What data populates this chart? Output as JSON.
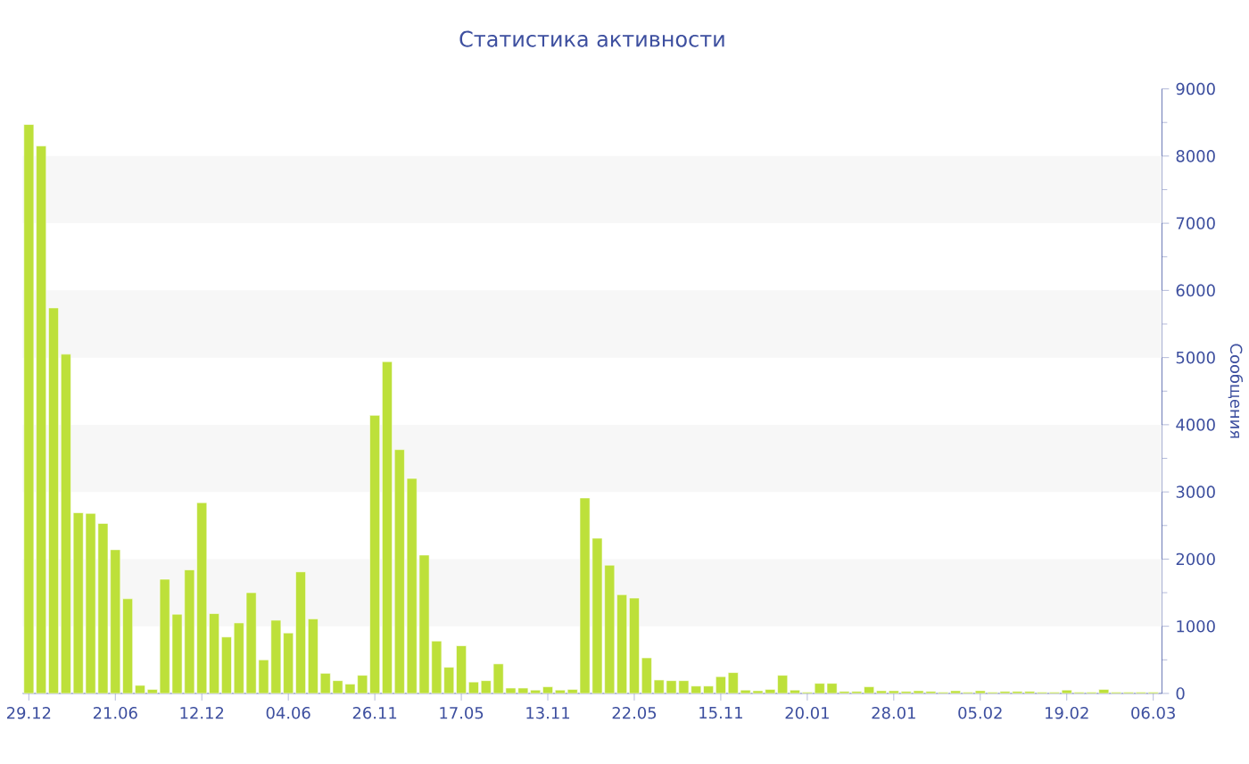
{
  "chart_data": {
    "type": "bar",
    "title": "Статистика активности",
    "ylabel": "Сообщения",
    "color": "#bde03a",
    "categories": [
      "29.12",
      null,
      null,
      null,
      null,
      null,
      null,
      "21.06",
      null,
      null,
      null,
      null,
      null,
      null,
      "12.12",
      null,
      null,
      null,
      null,
      null,
      null,
      "04.06",
      null,
      null,
      null,
      null,
      null,
      null,
      "26.11",
      null,
      null,
      null,
      null,
      null,
      null,
      "17.05",
      null,
      null,
      null,
      null,
      null,
      null,
      "13.11",
      null,
      null,
      null,
      null,
      null,
      null,
      "22.05",
      null,
      null,
      null,
      null,
      null,
      null,
      "15.11",
      null,
      null,
      null,
      null,
      null,
      null,
      "20.01",
      null,
      null,
      null,
      null,
      null,
      null,
      "28.01",
      null,
      null,
      null,
      null,
      null,
      null,
      "05.02",
      null,
      null,
      null,
      null,
      null,
      null,
      "19.02",
      null,
      null,
      null,
      null,
      null,
      null,
      "06.03"
    ],
    "values": [
      8470,
      8150,
      5740,
      5050,
      2690,
      2680,
      2530,
      2140,
      1410,
      120,
      60,
      1700,
      1180,
      1840,
      2840,
      1190,
      840,
      1050,
      1500,
      500,
      1090,
      900,
      1810,
      1110,
      300,
      190,
      140,
      270,
      4140,
      4940,
      3630,
      3200,
      2060,
      780,
      390,
      710,
      170,
      190,
      440,
      80,
      80,
      50,
      100,
      50,
      60,
      2910,
      2310,
      1910,
      1470,
      1420,
      530,
      200,
      190,
      190,
      110,
      110,
      250,
      310,
      50,
      40,
      60,
      270,
      50,
      20,
      150,
      150,
      30,
      30,
      100,
      40,
      40,
      30,
      40,
      30,
      20,
      40,
      20,
      40,
      20,
      30,
      30,
      30,
      20,
      20,
      50,
      20,
      20,
      60,
      20,
      20,
      20,
      20
    ],
    "ylim": [
      0,
      9000
    ],
    "yticks": [
      0,
      1000,
      2000,
      3000,
      4000,
      5000,
      6000,
      7000,
      8000,
      9000
    ],
    "bands": [
      {
        "axis": "y",
        "from": 1000,
        "to": 2000,
        "color": "#f7f7f7"
      },
      {
        "axis": "y",
        "from": 3000,
        "to": 4000,
        "color": "#f7f7f7"
      },
      {
        "axis": "y",
        "from": 5000,
        "to": 6000,
        "color": "#f7f7f7"
      },
      {
        "axis": "y",
        "from": 7000,
        "to": 8000,
        "color": "#f7f7f7"
      }
    ],
    "grid": false
  }
}
